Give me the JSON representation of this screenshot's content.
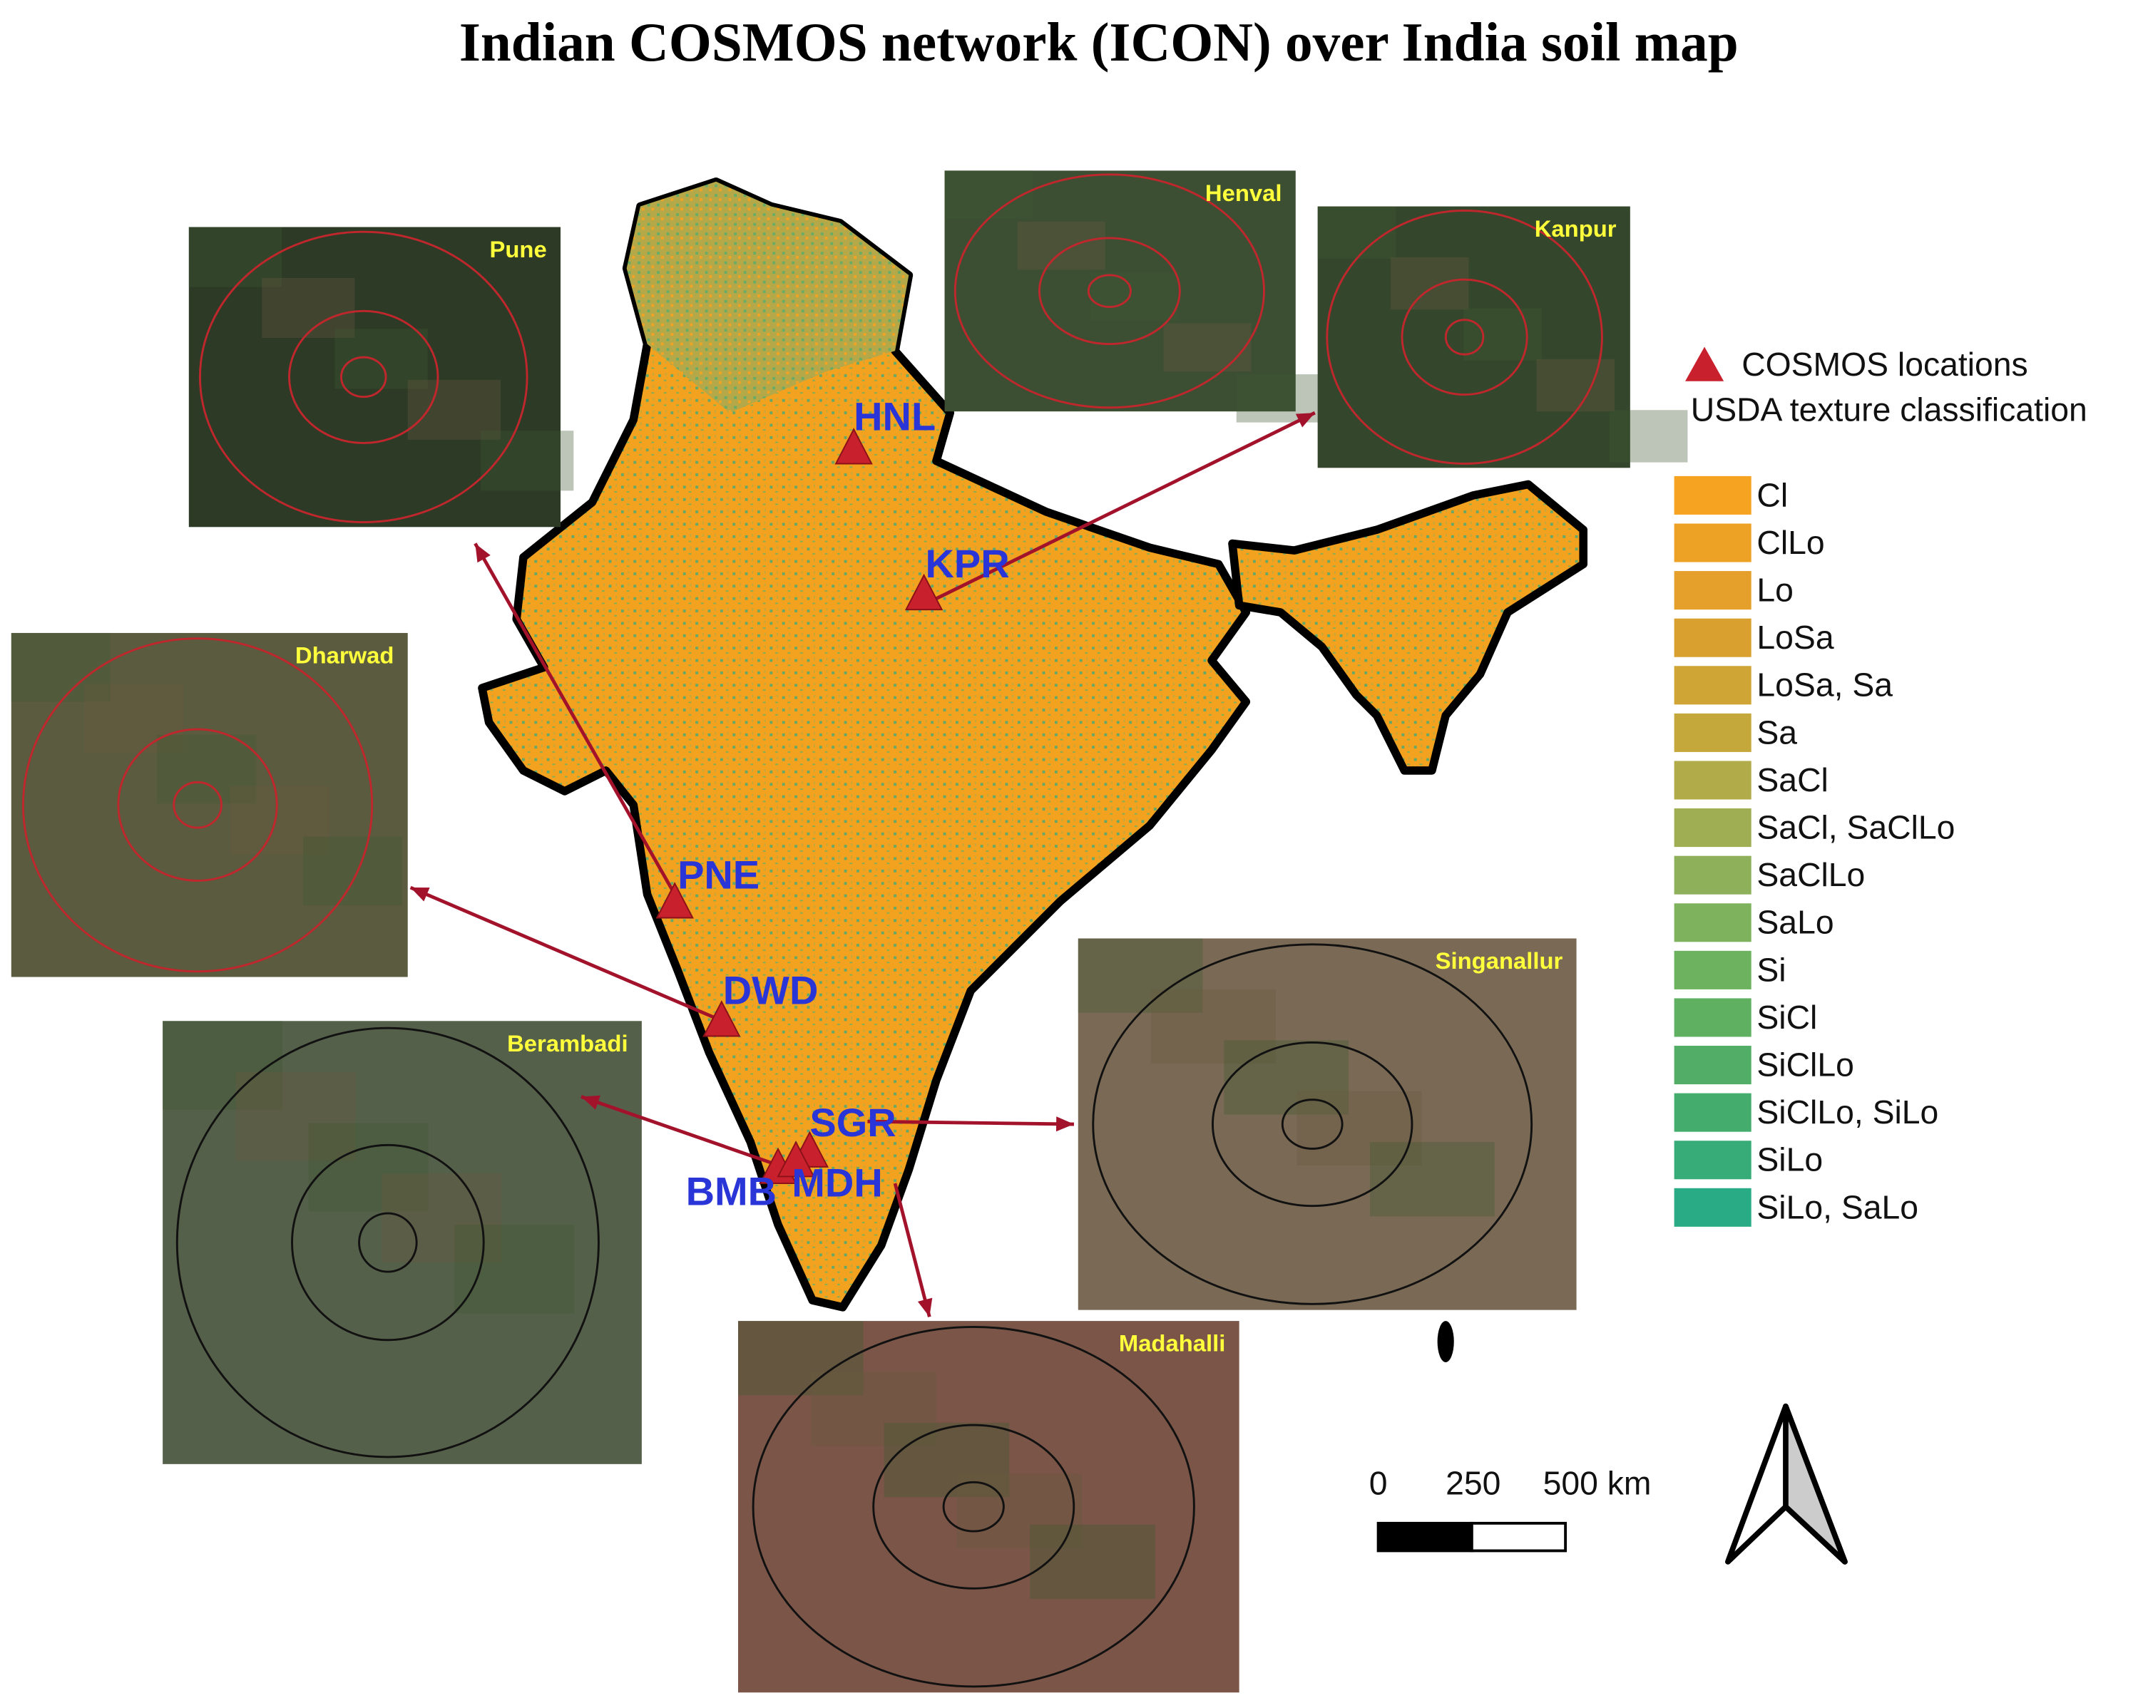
{
  "title": "Indian COSMOS network (ICON) over India soil map",
  "sites": [
    {
      "code": "HNL"
    },
    {
      "code": "KPR"
    },
    {
      "code": "PNE"
    },
    {
      "code": "DWD"
    },
    {
      "code": "SGR"
    },
    {
      "code": "BMB"
    },
    {
      "code": "MDH"
    }
  ],
  "insets": [
    {
      "label": "Pune"
    },
    {
      "label": "Henval"
    },
    {
      "label": "Kanpur"
    },
    {
      "label": "Dharwad"
    },
    {
      "label": "Berambadi"
    },
    {
      "label": "Singanallur"
    },
    {
      "label": "Madahalli"
    }
  ],
  "legend": {
    "marker_label": "COSMOS locations",
    "heading": "USDA texture classification",
    "classes": [
      {
        "label": "Cl",
        "color": "#f5a320"
      },
      {
        "label": "ClLo",
        "color": "#eea225"
      },
      {
        "label": "Lo",
        "color": "#e4a02a"
      },
      {
        "label": "LoSa",
        "color": "#d9a030"
      },
      {
        "label": "LoSa, Sa",
        "color": "#cfa535"
      },
      {
        "label": "Sa",
        "color": "#c4a83c"
      },
      {
        "label": "SaCl",
        "color": "#b2ab4a"
      },
      {
        "label": "SaCl, SaClLo",
        "color": "#9fae52"
      },
      {
        "label": "SaClLo",
        "color": "#8eb05a"
      },
      {
        "label": "SaLo",
        "color": "#7eb25c"
      },
      {
        "label": "Si",
        "color": "#6db25e"
      },
      {
        "label": "SiCl",
        "color": "#5fb061"
      },
      {
        "label": "SiClLo",
        "color": "#52ae66"
      },
      {
        "label": "SiClLo, SiLo",
        "color": "#44ad6e"
      },
      {
        "label": "SiLo",
        "color": "#37ac78"
      },
      {
        "label": "SiLo, SaLo",
        "color": "#29ab85"
      }
    ]
  },
  "scale_bar": {
    "labels": [
      "0",
      "250",
      "500 km"
    ]
  }
}
